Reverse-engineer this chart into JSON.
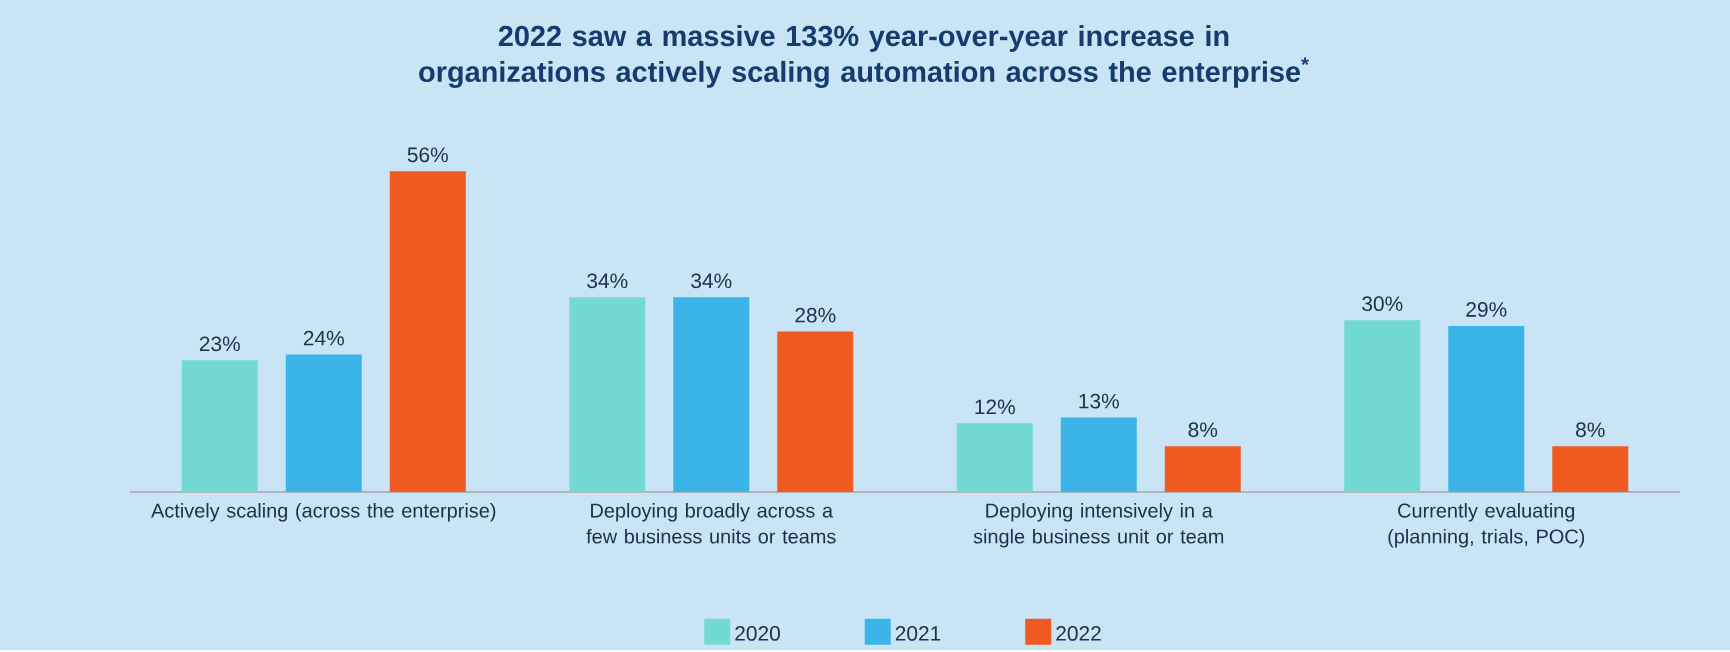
{
  "chart_data": {
    "type": "bar",
    "title": "2022 saw a massive 133% year-over-year increase in organizations actively scaling automation across the enterprise$^{*}$",
    "categories": [
      "Actively scaling (across the enterprise)",
      "Deploying broadly across a few business units or teams",
      "Deploying intensively in a single business unit or team",
      "Currently evaluating (planning, trials, POC)"
    ],
    "series": [
      {
        "name": "2020",
        "color": "#72d9d3",
        "values": [
          23,
          34,
          12,
          30
        ],
        "value_labels": [
          "23%",
          "34%",
          "12%",
          "30%"
        ]
      },
      {
        "name": "2021",
        "color": "#3bb5e9",
        "values": [
          24,
          34,
          13,
          29
        ],
        "value_labels": [
          "24%",
          "34%",
          "13%",
          "29%"
        ]
      },
      {
        "name": "2022",
        "color": "#ee5a1f",
        "values": [
          56,
          28,
          8,
          8
        ],
        "value_labels": [
          "56%",
          "28%",
          "8%",
          "8%"
        ]
      }
    ],
    "legend": "bottom"
  }
}
